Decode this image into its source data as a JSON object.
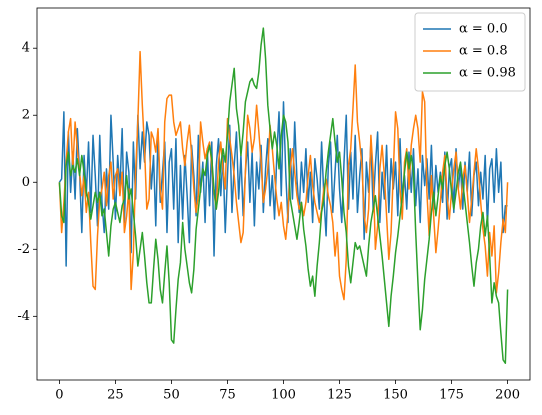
{
  "chart_data": {
    "type": "line",
    "legend": "upper right",
    "xlim": [
      -10,
      210
    ],
    "ylim": [
      -5.9,
      5.2
    ],
    "xticks": [
      0,
      25,
      50,
      75,
      100,
      125,
      150,
      175,
      200
    ],
    "yticks": [
      -4,
      -2,
      0,
      2,
      4
    ],
    "x": [
      0,
      1,
      2,
      3,
      4,
      5,
      6,
      7,
      8,
      9,
      10,
      11,
      12,
      13,
      14,
      15,
      16,
      17,
      18,
      19,
      20,
      21,
      22,
      23,
      24,
      25,
      26,
      27,
      28,
      29,
      30,
      31,
      32,
      33,
      34,
      35,
      36,
      37,
      38,
      39,
      40,
      41,
      42,
      43,
      44,
      45,
      46,
      47,
      48,
      49,
      50,
      51,
      52,
      53,
      54,
      55,
      56,
      57,
      58,
      59,
      60,
      61,
      62,
      63,
      64,
      65,
      66,
      67,
      68,
      69,
      70,
      71,
      72,
      73,
      74,
      75,
      76,
      77,
      78,
      79,
      80,
      81,
      82,
      83,
      84,
      85,
      86,
      87,
      88,
      89,
      90,
      91,
      92,
      93,
      94,
      95,
      96,
      97,
      98,
      99,
      100,
      101,
      102,
      103,
      104,
      105,
      106,
      107,
      108,
      109,
      110,
      111,
      112,
      113,
      114,
      115,
      116,
      117,
      118,
      119,
      120,
      121,
      122,
      123,
      124,
      125,
      126,
      127,
      128,
      129,
      130,
      131,
      132,
      133,
      134,
      135,
      136,
      137,
      138,
      139,
      140,
      141,
      142,
      143,
      144,
      145,
      146,
      147,
      148,
      149,
      150,
      151,
      152,
      153,
      154,
      155,
      156,
      157,
      158,
      159,
      160,
      161,
      162,
      163,
      164,
      165,
      166,
      167,
      168,
      169,
      170,
      171,
      172,
      173,
      174,
      175,
      176,
      177,
      178,
      179,
      180,
      181,
      182,
      183,
      184,
      185,
      186,
      187,
      188,
      189,
      190,
      191,
      192,
      193,
      194,
      195,
      196,
      197,
      198,
      199,
      200
    ],
    "series": [
      {
        "name": "α = 0.0",
        "color": "#1f77b4",
        "values": [
          0,
          0.1,
          2.1,
          -2.5,
          1.5,
          -0.3,
          0.9,
          -0.5,
          1.6,
          0.3,
          -1.5,
          0.8,
          -0.4,
          1.2,
          -0.9,
          1.4,
          0.2,
          -1.3,
          1.4,
          -0.6,
          -1.5,
          0.4,
          -0.8,
          2.0,
          0.6,
          -1.1,
          0.8,
          -0.2,
          1.6,
          -1.2,
          0.9,
          0.3,
          -2.1,
          1.2,
          -0.5,
          2.0,
          0.4,
          1.5,
          0.6,
          1.8,
          1.4,
          -0.2,
          0.8,
          -1.3,
          1.5,
          -0.6,
          0.3,
          1.2,
          -1.5,
          0.6,
          1.0,
          -0.8,
          1.3,
          -1.8,
          0.5,
          -1.1,
          0.8,
          -0.4,
          -1.8,
          1.1,
          0.2,
          -1.0,
          1.4,
          -0.3,
          0.6,
          -1.2,
          1.0,
          -0.7,
          1.2,
          -2.2,
          0.5,
          1.3,
          -0.4,
          0.8,
          -1.5,
          0.2,
          1.7,
          -0.9,
          0.5,
          1.5,
          -0.5,
          0.8,
          -1.0,
          0.3,
          1.2,
          -0.6,
          0.9,
          -1.3,
          0.6,
          -0.2,
          1.1,
          -0.9,
          0.4,
          1.3,
          -0.7,
          0.2,
          -1.1,
          0.8,
          2.1,
          -0.4,
          2.4,
          0.3,
          -1.2,
          1.0,
          -0.5,
          1.8,
          0.1,
          -0.9,
          0.6,
          -0.3,
          1.0,
          -0.6,
          0.3,
          -1.2,
          0.7,
          0.1,
          -0.8,
          1.2,
          -0.4,
          -1.6,
          0.5,
          1.2,
          -0.9,
          0.3,
          1.4,
          -0.2,
          -1.2,
          0.6,
          2.0,
          -0.8,
          0.9,
          -0.5,
          1.4,
          -0.9,
          0.2,
          1.0,
          -1.7,
          0.6,
          -0.3,
          1.2,
          -0.8,
          0.5,
          1.5,
          -1.2,
          0.3,
          -0.5,
          1.1,
          -0.9,
          0.7,
          -0.2,
          0.6,
          -1.0,
          1.3,
          -0.6,
          0.2,
          -0.8,
          0.9,
          -0.3,
          1.0,
          -0.7,
          0.4,
          -1.2,
          0.8,
          -0.1,
          0.7,
          -0.5,
          1.1,
          -0.8,
          0.5,
          -0.3,
          0.3,
          -0.6,
          0.9,
          -1.1,
          0.4,
          0.7,
          -0.9,
          1.0,
          -0.2,
          0.5,
          -0.8,
          0.6,
          -0.3,
          0.9,
          -1.0,
          0.2,
          0.6,
          -0.7,
          0.3,
          -0.5,
          0.8,
          -1.3,
          0.4,
          0.7,
          -0.6,
          1.0,
          -0.3,
          0.6,
          -1.5,
          -0.7,
          -0.7
        ]
      },
      {
        "name": "α = 0.8",
        "color": "#ff7f0e",
        "values": [
          0,
          -1.5,
          -0.6,
          0.6,
          1.5,
          1.9,
          0.4,
          1.8,
          1.0,
          0.3,
          -0.4,
          0.2,
          -0.9,
          -0.3,
          -1.8,
          -3.1,
          -3.2,
          -1.6,
          -0.5,
          -0.2,
          0.3,
          -0.7,
          0.2,
          0.6,
          -0.5,
          0.2,
          0.4,
          -0.4,
          0.3,
          -1.5,
          -1.0,
          -0.2,
          -3.2,
          -2.1,
          0.3,
          1.8,
          3.9,
          2.3,
          1.0,
          -0.8,
          -0.5,
          1.5,
          1.3,
          0.9,
          1.6,
          -0.2,
          -0.8,
          1.8,
          2.5,
          2.6,
          2.6,
          1.8,
          1.4,
          1.6,
          1.8,
          1.0,
          0.5,
          1.2,
          1.7,
          0.8,
          -0.2,
          -0.9,
          -0.4,
          1.8,
          1.2,
          0.7,
          1.0,
          1.2,
          0.5,
          -0.3,
          -0.8,
          0.6,
          1.2,
          0.4,
          -0.2,
          1.9,
          1.3,
          0.8,
          0.2,
          -0.6,
          -1.2,
          -1.8,
          -1.5,
          0.3,
          2.0,
          1.6,
          0.9,
          1.3,
          2.3,
          1.5,
          0.6,
          -0.6,
          -0.2,
          0.4,
          1.7,
          1.0,
          0.2,
          -0.5,
          -1.0,
          -0.6,
          -1.3,
          -1.7,
          -0.9,
          0.4,
          1.0,
          0.3,
          -0.4,
          -0.8,
          -0.6,
          -1.0,
          -0.6,
          0.2,
          0.8,
          -0.1,
          -0.6,
          -0.9,
          -1.2,
          -0.8,
          -0.2,
          0.1,
          -0.4,
          -0.7,
          -1.2,
          -2.2,
          -1.5,
          -2.8,
          -3.2,
          -3.5,
          -2.3,
          0.5,
          1.0,
          2.2,
          3.5,
          1.8,
          1.2,
          0.5,
          -1.0,
          -1.5,
          -0.8,
          1.4,
          0.3,
          -2.0,
          -1.3,
          0.4,
          1.1,
          0.2,
          -1.0,
          -2.3,
          -1.5,
          0.3,
          2.1,
          1.6,
          -0.2,
          -1.1,
          0.6,
          1.0,
          -0.2,
          1.1,
          1.6,
          2.0,
          1.6,
          0.6,
          2.7,
          2.4,
          -0.3,
          -1.6,
          0.2,
          -1.0,
          -2.1,
          -1.4,
          -0.6,
          0.3,
          0.8,
          -0.4,
          -1.1,
          -0.3,
          0.4,
          0.9,
          -0.2,
          -0.8,
          0.1,
          0.5,
          -0.3,
          -1.2,
          -0.5,
          0.3,
          1.0,
          0.4,
          -0.6,
          -1.4,
          -1.9,
          -2.8,
          -1.5,
          -2.2,
          -1.3,
          -3.3,
          -2.7,
          -1.8,
          -1.1,
          -1.5,
          0.0
        ]
      },
      {
        "name": "α = 0.98",
        "color": "#2ca02c",
        "values": [
          0,
          -1.0,
          -1.2,
          0.5,
          0.9,
          0.2,
          0.5,
          0.3,
          0.7,
          0.2,
          0.8,
          0.3,
          -0.3,
          -0.6,
          -1.1,
          -0.7,
          -0.3,
          -0.6,
          -0.3,
          -1.0,
          -0.8,
          -1.5,
          -2.2,
          -1.3,
          -0.8,
          -0.6,
          -0.9,
          -1.2,
          -0.7,
          -0.5,
          0.2,
          -0.5,
          -0.2,
          -0.9,
          -1.6,
          -2.5,
          -2.0,
          -1.5,
          -2.2,
          -3.0,
          -3.6,
          -3.6,
          -2.6,
          -1.7,
          -2.3,
          -3.2,
          -3.6,
          -2.7,
          -1.9,
          -3.0,
          -4.7,
          -4.8,
          -3.8,
          -2.9,
          -2.4,
          -1.2,
          -2.0,
          -2.5,
          -3.0,
          -3.3,
          -2.6,
          -1.4,
          -0.8,
          -0.2,
          0.4,
          0.2,
          0.8,
          1.1,
          0.7,
          -0.2,
          -0.8,
          -0.3,
          0.5,
          1.0,
          0.6,
          1.4,
          2.4,
          2.9,
          3.4,
          2.2,
          1.7,
          0.8,
          1.5,
          2.4,
          2.7,
          3.0,
          3.1,
          2.9,
          2.8,
          3.3,
          4.1,
          4.6,
          3.7,
          2.3,
          1.6,
          1.0,
          1.5,
          1.1,
          0.4,
          1.4,
          2.0,
          1.8,
          1.2,
          -0.5,
          -0.9,
          -1.3,
          -1.7,
          -1.2,
          -0.6,
          -1.4,
          -1.9,
          -2.6,
          -3.1,
          -2.8,
          -3.4,
          -2.5,
          -1.8,
          -0.9,
          -0.5,
          0.3,
          0.9,
          1.4,
          1.9,
          1.2,
          0.6,
          0.9,
          0.1,
          -0.9,
          -1.5,
          -2.5,
          -3.0,
          -2.4,
          -1.8,
          -2.0,
          -1.9,
          -2.2,
          -2.5,
          -2.8,
          -1.9,
          -1.2,
          -0.8,
          -0.4,
          -1.0,
          -1.6,
          -2.2,
          -2.9,
          -3.6,
          -4.3,
          -3.4,
          -2.8,
          -2.1,
          -1.6,
          -1.0,
          -0.4,
          0.3,
          0.9,
          0.4,
          0.8,
          0.3,
          -1.5,
          -3.0,
          -4.4,
          -3.8,
          -2.9,
          -2.3,
          -1.7,
          -0.9,
          -0.3,
          -1.0,
          -0.4,
          0.2,
          -0.2,
          0.5,
          0.9,
          0.4,
          -0.3,
          -0.8,
          -0.3,
          0.3,
          0.6,
          0.0,
          -0.6,
          -1.2,
          -1.8,
          -2.5,
          -3.1,
          -2.4,
          -2.0,
          -1.3,
          -0.9,
          -1.6,
          -1.0,
          -2.2,
          -3.6,
          -3.0,
          -3.4,
          -3.6,
          -4.5,
          -5.3,
          -5.4,
          -3.2
        ]
      }
    ]
  }
}
